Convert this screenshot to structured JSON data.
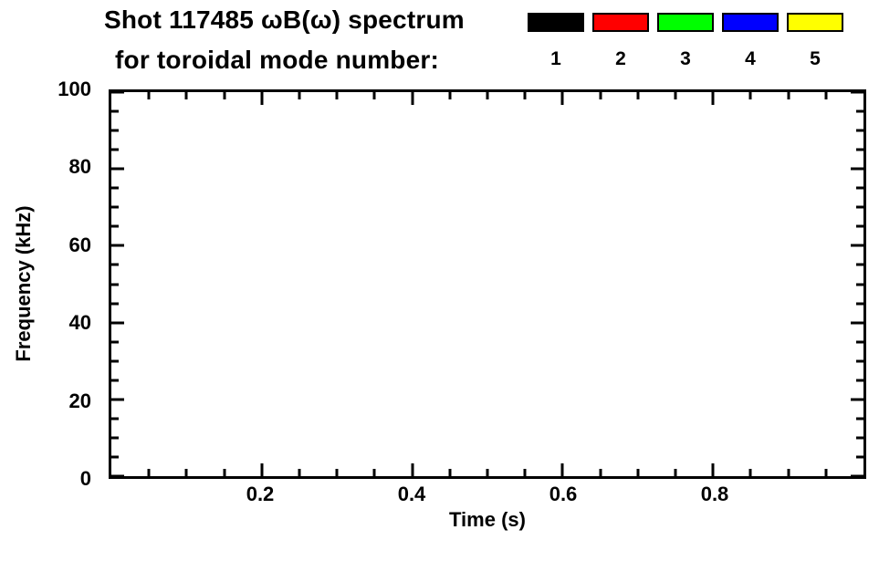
{
  "chart_data": {
    "type": "scatter",
    "title_line1": "Shot 117485 ωB(ω) spectrum",
    "title_line2": "for toroidal mode number:",
    "xlabel": "Time (s)",
    "ylabel": "Frequency (kHz)",
    "xlim": [
      0,
      1.0
    ],
    "ylim": [
      0,
      100
    ],
    "x_major_ticks": [
      0.2,
      0.4,
      0.6,
      0.8
    ],
    "x_tick_labels": [
      "0.2",
      "0.4",
      "0.6",
      "0.8"
    ],
    "x_minor_step": 0.05,
    "y_major_ticks": [
      0,
      20,
      40,
      60,
      80,
      100
    ],
    "y_tick_labels": [
      "0",
      "20",
      "40",
      "60",
      "80",
      "100"
    ],
    "y_minor_step": 5,
    "grid": false,
    "legend_position": "top-right",
    "legend": [
      {
        "label": "1",
        "color": "#000000"
      },
      {
        "label": "2",
        "color": "#ff0000"
      },
      {
        "label": "3",
        "color": "#00ff00"
      },
      {
        "label": "4",
        "color": "#0000ff"
      },
      {
        "label": "5",
        "color": "#ffff00"
      }
    ],
    "series": []
  }
}
